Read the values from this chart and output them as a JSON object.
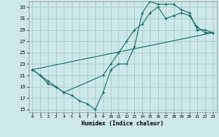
{
  "xlabel": "Humidex (Indice chaleur)",
  "background_color": "#cce8e8",
  "grid_color": "#aacccc",
  "line_color": "#1a6b6b",
  "xlim": [
    -0.5,
    23.5
  ],
  "ylim": [
    14.5,
    34
  ],
  "xticks": [
    0,
    1,
    2,
    3,
    4,
    5,
    6,
    7,
    8,
    9,
    10,
    11,
    12,
    13,
    14,
    15,
    16,
    17,
    18,
    19,
    20,
    21,
    22,
    23
  ],
  "yticks": [
    15,
    17,
    19,
    21,
    23,
    25,
    27,
    29,
    31,
    33
  ],
  "line1_x": [
    0,
    1,
    2,
    3,
    4,
    5,
    6,
    7,
    8,
    9,
    10,
    11,
    12,
    13,
    14,
    15,
    16,
    17,
    18,
    19,
    20,
    21,
    22,
    23
  ],
  "line1_y": [
    22,
    21,
    20,
    19,
    18,
    17.5,
    16.5,
    16,
    15,
    18,
    22,
    23,
    23,
    26,
    32,
    34,
    33.5,
    33.5,
    33.5,
    32.5,
    32,
    29,
    29,
    28.5
  ],
  "line2_x": [
    0,
    1,
    2,
    3,
    4,
    9,
    10,
    11,
    12,
    13,
    14,
    15,
    16,
    17,
    18,
    19,
    20,
    21,
    22,
    23
  ],
  "line2_y": [
    22,
    21,
    19.5,
    19,
    18,
    21,
    23,
    25,
    27,
    29,
    30,
    32,
    33,
    31,
    31.5,
    32,
    31.5,
    29.5,
    28.5,
    28.5
  ],
  "line3_x": [
    0,
    23
  ],
  "line3_y": [
    22,
    28.5
  ]
}
